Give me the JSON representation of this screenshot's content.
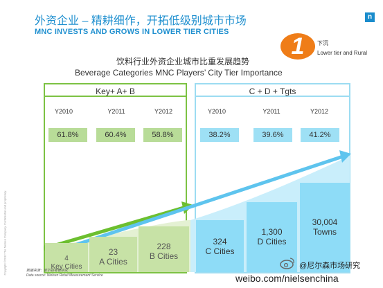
{
  "header": {
    "title_cn": "外资企业  –  精耕细作，开拓低级别城市市场",
    "title_en": "MNC INVESTS AND GROWS IN LOWER TIER CITIES",
    "logo_letter": "n"
  },
  "badge": {
    "number": "1",
    "label_cn": "下沉",
    "label_en": "Lower tier and Rural"
  },
  "subtitle": {
    "cn": "饮料行业外资企业城市比重发展趋势",
    "en": "Beverage Categories MNC Players’ City Tier Importance"
  },
  "panels": [
    {
      "header": "Key+ A+ B",
      "years": [
        "Y2010",
        "Y2011",
        "Y2012"
      ],
      "percents": [
        "61.8%",
        "60.4%",
        "58.8%"
      ],
      "bars": [
        {
          "count": "4",
          "label": "Key Cities"
        },
        {
          "count": "23",
          "label": "A Cities"
        },
        {
          "count": "228",
          "label": "B Cities"
        }
      ]
    },
    {
      "header": "C + D + Tgts",
      "years": [
        "Y2010",
        "Y2011",
        "Y2012"
      ],
      "percents": [
        "38.2%",
        "39.6%",
        "41.2%"
      ],
      "bars": [
        {
          "count": "324",
          "label": "C Cities"
        },
        {
          "count": "1,300",
          "label": "D Cities"
        },
        {
          "count": "30,004",
          "label": "Towns"
        }
      ]
    }
  ],
  "source": {
    "line1": "数据来源：尼尔森零售研究",
    "line2": "Data source: Nielsen Retail Measurement Service"
  },
  "side_note": "Copyright ©2012 The Nielsen Company. Confidential and proprietary.",
  "weibo": {
    "handle": "@尼尔森市场研究",
    "url": "weibo.com/nielsenchina"
  },
  "colors": {
    "brand_blue": "#1e8fcf",
    "green": "#7cc243",
    "light_blue": "#9cdcf2",
    "orange": "#ef7d18"
  }
}
